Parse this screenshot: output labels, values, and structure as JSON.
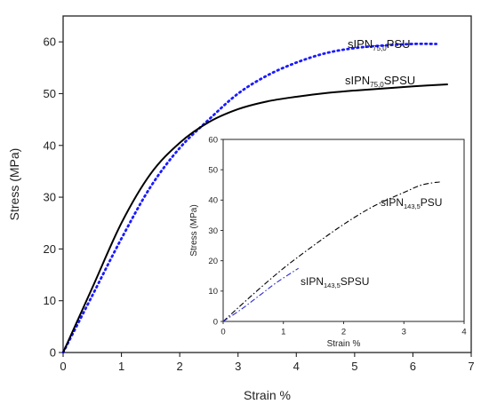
{
  "chart_data": [
    {
      "type": "line",
      "xlabel": "Strain %",
      "ylabel": "Stress (MPa)",
      "xlim": [
        0,
        7
      ],
      "ylim": [
        0,
        65
      ],
      "xticks": [
        "0",
        "1",
        "2",
        "3",
        "4",
        "5",
        "6",
        "7"
      ],
      "yticks": [
        "0",
        "10",
        "20",
        "30",
        "40",
        "50",
        "60"
      ],
      "x_tick_values": [
        0,
        1,
        2,
        3,
        4,
        5,
        6,
        7
      ],
      "y_tick_values": [
        0,
        10,
        20,
        30,
        40,
        50,
        60
      ],
      "series": [
        {
          "name": "sIPN75,0PSU",
          "label_main": "sIPN",
          "label_sub": "75,0",
          "label_tail": "PSU",
          "style": "dotted",
          "color": "#1a1aff",
          "x": [
            0,
            0.5,
            1,
            1.5,
            2,
            2.5,
            3,
            3.5,
            4,
            4.5,
            5,
            5.5,
            6,
            6.4
          ],
          "y": [
            0,
            11,
            22,
            32,
            39.5,
            45,
            50,
            53.5,
            56,
            57.8,
            58.8,
            59.3,
            59.6,
            59.6
          ]
        },
        {
          "name": "sIPN75,0SPSU",
          "label_main": "sIPN",
          "label_sub": "75,0",
          "label_tail": "SPSU",
          "style": "solid",
          "color": "#000000",
          "x": [
            0,
            0.5,
            1,
            1.5,
            2,
            2.5,
            3,
            3.5,
            4,
            4.5,
            5,
            5.5,
            6,
            6.6
          ],
          "y": [
            0,
            12.5,
            25,
            34.5,
            40.5,
            44.5,
            47,
            48.5,
            49.4,
            50.1,
            50.6,
            51,
            51.4,
            51.8
          ]
        }
      ]
    },
    {
      "type": "line",
      "xlabel": "Strain %",
      "ylabel": "Stress (MPa)",
      "xlim": [
        0,
        4
      ],
      "ylim": [
        0,
        60
      ],
      "xticks": [
        "0",
        "1",
        "2",
        "3",
        "4"
      ],
      "yticks": [
        "0",
        "10",
        "20",
        "30",
        "40",
        "50",
        "60"
      ],
      "x_tick_values": [
        0,
        1,
        2,
        3,
        4
      ],
      "y_tick_values": [
        0,
        10,
        20,
        30,
        40,
        50,
        60
      ],
      "series": [
        {
          "name": "sIPN143,5PSU",
          "label_main": "sIPN",
          "label_sub": "143,5",
          "label_tail": "PSU",
          "style": "dashdot",
          "color": "#000000",
          "x": [
            0,
            0.5,
            1,
            1.5,
            2,
            2.5,
            3,
            3.3,
            3.6
          ],
          "y": [
            0,
            9,
            17.5,
            25,
            32,
            38,
            42.5,
            45,
            46
          ]
        },
        {
          "name": "sIPN143,5SPSU",
          "label_main": "sIPN",
          "label_sub": "143,5",
          "label_tail": "SPSU",
          "style": "dashdot",
          "color": "#2a2acc",
          "x": [
            0,
            0.3,
            0.6,
            0.9,
            1.25
          ],
          "y": [
            0,
            4,
            8.5,
            13,
            17.5
          ]
        }
      ]
    }
  ]
}
